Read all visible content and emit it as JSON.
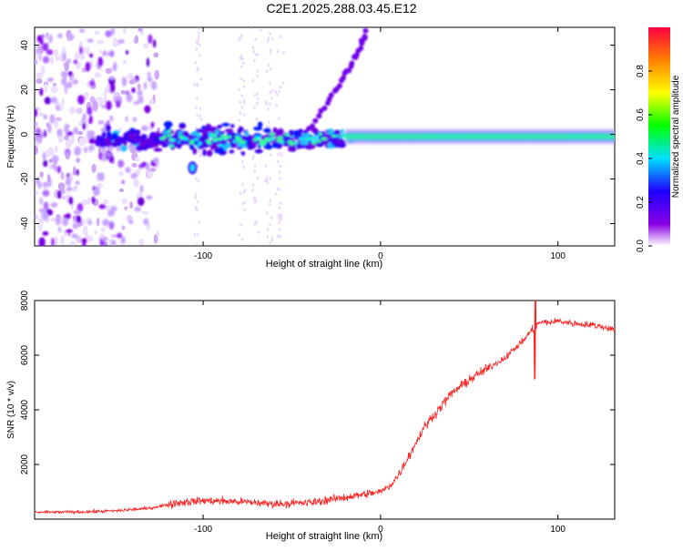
{
  "title": "C2E1.2025.288.03.45.E12",
  "chart_data": [
    {
      "type": "heatmap",
      "xlabel": "Height of straight line (km)",
      "ylabel": "Frequency (Hz)",
      "xlim": [
        -195,
        132
      ],
      "ylim": [
        -50,
        48
      ],
      "xticks": [
        -100,
        0,
        100
      ],
      "yticks": [
        -40,
        -20,
        0,
        20,
        40
      ],
      "features": {
        "noise_region_x": [
          -195,
          -125
        ],
        "central_band_x": [
          -160,
          -20
        ],
        "central_band_freq": -2,
        "narrow_carrier_x": [
          -20,
          132
        ],
        "narrow_carrier_freq": -1,
        "curved_branch": [
          [
            -40,
            2
          ],
          [
            -30,
            14
          ],
          [
            -22,
            24
          ],
          [
            -16,
            32
          ],
          [
            -11,
            40
          ],
          [
            -8,
            47
          ]
        ],
        "outlier_blob": [
          -106,
          -15
        ]
      },
      "colorbar": {
        "label": "Normalized spectral amplitude",
        "range": [
          0.0,
          1.0
        ],
        "ticks": [
          0.0,
          0.2,
          0.4,
          0.6,
          0.8
        ],
        "tick_labels": [
          "0.0",
          "0.2",
          "0.4",
          "0.6",
          "0.8"
        ]
      }
    },
    {
      "type": "line",
      "xlabel": "Height of straight line (km)",
      "ylabel": "SNR (10 * v/v)",
      "xlim": [
        -195,
        132
      ],
      "ylim": [
        0,
        8000
      ],
      "xticks": [
        -100,
        0,
        100
      ],
      "yticks": [
        2000,
        4000,
        6000,
        8000
      ],
      "color": "#ff2020",
      "series": [
        {
          "name": "SNR",
          "x": [
            -195,
            -170,
            -150,
            -130,
            -115,
            -100,
            -80,
            -60,
            -40,
            -20,
            -10,
            0,
            5,
            10,
            15,
            20,
            25,
            30,
            35,
            40,
            50,
            60,
            70,
            75,
            80,
            85,
            90,
            95,
            100,
            110,
            120,
            132
          ],
          "y": [
            250,
            260,
            300,
            400,
            600,
            680,
            640,
            560,
            600,
            800,
            900,
            1000,
            1200,
            1600,
            2200,
            2800,
            3400,
            3800,
            4200,
            4600,
            5100,
            5500,
            5900,
            6200,
            6500,
            6900,
            7200,
            7200,
            7250,
            7150,
            7100,
            6950
          ]
        }
      ]
    }
  ]
}
